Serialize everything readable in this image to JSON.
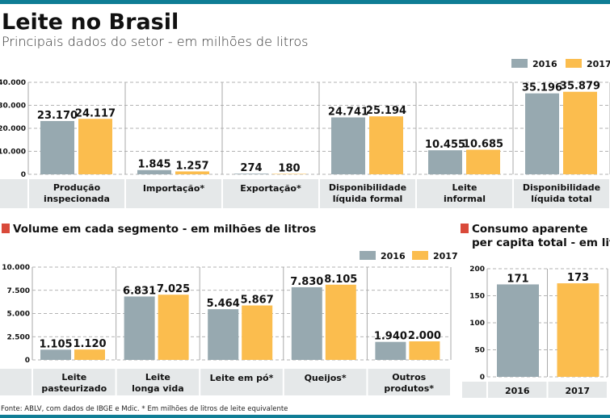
{
  "header": {
    "title": "Leite no Brasil",
    "subtitle": "Principais dados do setor - em milhões de litros"
  },
  "colors": {
    "2016": "#97a9b0",
    "2017": "#fbbd4e",
    "accent": "#0f7d95",
    "section_marker": "#d94a3a",
    "label_band": "#e5e8e9"
  },
  "chart_data": [
    {
      "type": "bar",
      "title": "",
      "legend": [
        "2016",
        "2017"
      ],
      "legend_placement": "top-right",
      "grid": true,
      "ylim": [
        0,
        40000
      ],
      "yticks": [
        "0",
        "10.000",
        "20.000",
        "30.000",
        "40.000"
      ],
      "categories": [
        [
          "Produção",
          "inspecionada"
        ],
        [
          "Importação*"
        ],
        [
          "Exportação*"
        ],
        [
          "Disponibilidade",
          "líquida formal"
        ],
        [
          "Leite",
          "informal"
        ],
        [
          "Disponibilidade",
          "líquida total"
        ]
      ],
      "series": [
        {
          "name": "2016",
          "values": [
            23170,
            1845,
            274,
            24741,
            10455,
            35196
          ],
          "labels": [
            "23.170",
            "1.845",
            "274",
            "24.741",
            "10.455",
            "35.196"
          ]
        },
        {
          "name": "2017",
          "values": [
            24117,
            1257,
            180,
            25194,
            10685,
            35879
          ],
          "labels": [
            "24.117",
            "1.257",
            "180",
            "25.194",
            "10.685",
            "35.879"
          ]
        }
      ]
    },
    {
      "type": "bar",
      "title": "Volume em cada segmento - em milhões de litros",
      "legend": [
        "2016",
        "2017"
      ],
      "legend_placement": "top-right",
      "grid": true,
      "ylim": [
        0,
        10000
      ],
      "yticks": [
        "0",
        "2.500",
        "5.000",
        "7.500",
        "10.000"
      ],
      "categories": [
        [
          "Leite",
          "pasteurizado"
        ],
        [
          "Leite",
          "longa vida"
        ],
        [
          "Leite em pó*"
        ],
        [
          "Queijos*"
        ],
        [
          "Outros",
          "produtos*"
        ]
      ],
      "series": [
        {
          "name": "2016",
          "values": [
            1105,
            6831,
            5464,
            7830,
            1940
          ],
          "labels": [
            "1.105",
            "6.831",
            "5.464",
            "7.830",
            "1.940"
          ]
        },
        {
          "name": "2017",
          "values": [
            1120,
            7025,
            5867,
            8105,
            2000
          ],
          "labels": [
            "1.120",
            "7.025",
            "5.867",
            "8.105",
            "2.000"
          ]
        }
      ]
    },
    {
      "type": "bar",
      "title": [
        "Consumo aparente",
        "per capita total - em litros"
      ],
      "grid": true,
      "ylim": [
        0,
        200
      ],
      "yticks": [
        "0",
        "50",
        "100",
        "150",
        "200"
      ],
      "categories": [
        [
          "2016"
        ],
        [
          "2017"
        ]
      ],
      "values": [
        171,
        173
      ],
      "labels": [
        "171",
        "173"
      ]
    }
  ],
  "footer": {
    "source": "Fonte: ABLV, com dados de IBGE e Mdic. * Em milhões de litros de leite equivalente"
  }
}
